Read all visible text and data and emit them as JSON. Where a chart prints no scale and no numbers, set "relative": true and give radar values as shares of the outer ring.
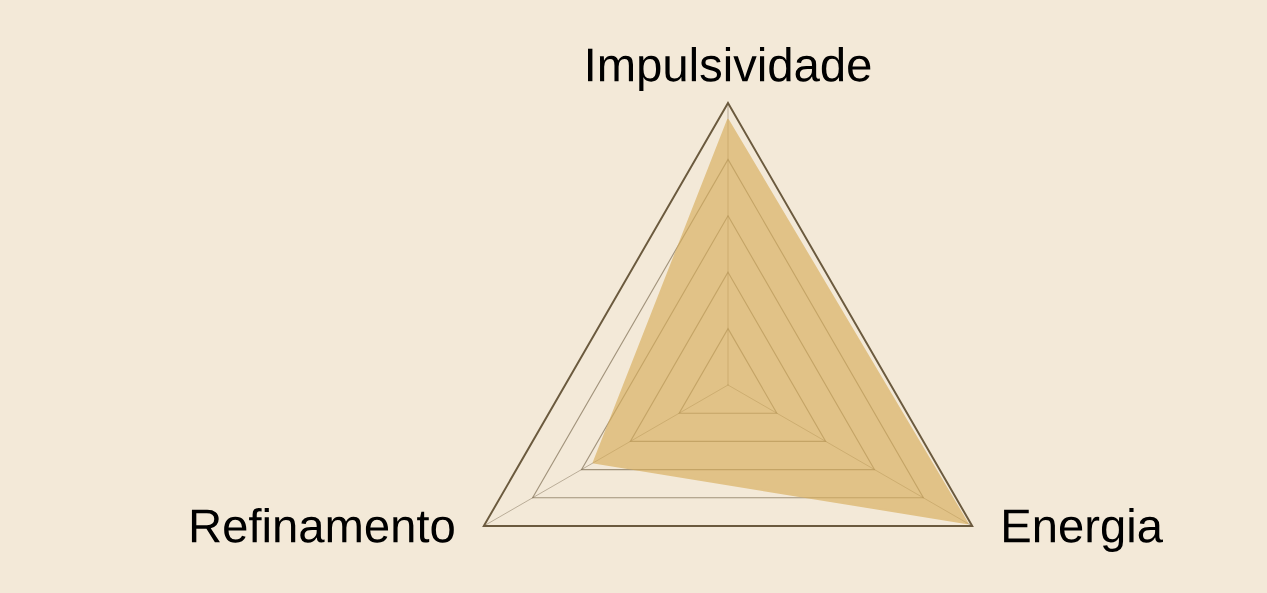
{
  "chart_data": {
    "type": "radar",
    "relative": true,
    "grid": true,
    "categories": [
      "Impulsividade",
      "Energia",
      "Refinamento"
    ],
    "series": [
      {
        "color": "#d8ae5c",
        "values": [
          0.94,
          0.98,
          0.55
        ]
      }
    ]
  }
}
